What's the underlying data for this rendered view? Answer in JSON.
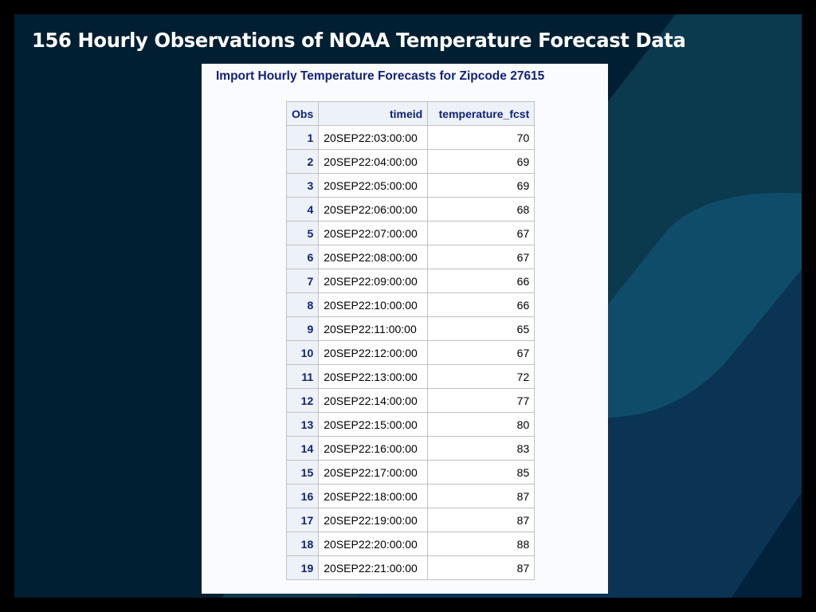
{
  "slide": {
    "title": "156 Hourly Observations of NOAA Temperature Forecast Data",
    "colors": {
      "background": "#011f33",
      "accent_dark": "#0b3a4f",
      "accent_mid": "#0f4c69",
      "accent_navy": "#0a3354",
      "title_text": "#ffffff"
    }
  },
  "report": {
    "title": "Import Hourly Temperature Forecasts for Zipcode 27615",
    "columns": [
      "Obs",
      "timeid",
      "temperature_fcst"
    ],
    "rows": [
      {
        "obs": "1",
        "timeid": "20SEP22:03:00:00",
        "temperature_fcst": "70"
      },
      {
        "obs": "2",
        "timeid": "20SEP22:04:00:00",
        "temperature_fcst": "69"
      },
      {
        "obs": "3",
        "timeid": "20SEP22:05:00:00",
        "temperature_fcst": "69"
      },
      {
        "obs": "4",
        "timeid": "20SEP22:06:00:00",
        "temperature_fcst": "68"
      },
      {
        "obs": "5",
        "timeid": "20SEP22:07:00:00",
        "temperature_fcst": "67"
      },
      {
        "obs": "6",
        "timeid": "20SEP22:08:00:00",
        "temperature_fcst": "67"
      },
      {
        "obs": "7",
        "timeid": "20SEP22:09:00:00",
        "temperature_fcst": "66"
      },
      {
        "obs": "8",
        "timeid": "20SEP22:10:00:00",
        "temperature_fcst": "66"
      },
      {
        "obs": "9",
        "timeid": "20SEP22:11:00:00",
        "temperature_fcst": "65"
      },
      {
        "obs": "10",
        "timeid": "20SEP22:12:00:00",
        "temperature_fcst": "67"
      },
      {
        "obs": "11",
        "timeid": "20SEP22:13:00:00",
        "temperature_fcst": "72"
      },
      {
        "obs": "12",
        "timeid": "20SEP22:14:00:00",
        "temperature_fcst": "77"
      },
      {
        "obs": "13",
        "timeid": "20SEP22:15:00:00",
        "temperature_fcst": "80"
      },
      {
        "obs": "14",
        "timeid": "20SEP22:16:00:00",
        "temperature_fcst": "83"
      },
      {
        "obs": "15",
        "timeid": "20SEP22:17:00:00",
        "temperature_fcst": "85"
      },
      {
        "obs": "16",
        "timeid": "20SEP22:18:00:00",
        "temperature_fcst": "87"
      },
      {
        "obs": "17",
        "timeid": "20SEP22:19:00:00",
        "temperature_fcst": "87"
      },
      {
        "obs": "18",
        "timeid": "20SEP22:20:00:00",
        "temperature_fcst": "88"
      },
      {
        "obs": "19",
        "timeid": "20SEP22:21:00:00",
        "temperature_fcst": "87"
      }
    ]
  }
}
